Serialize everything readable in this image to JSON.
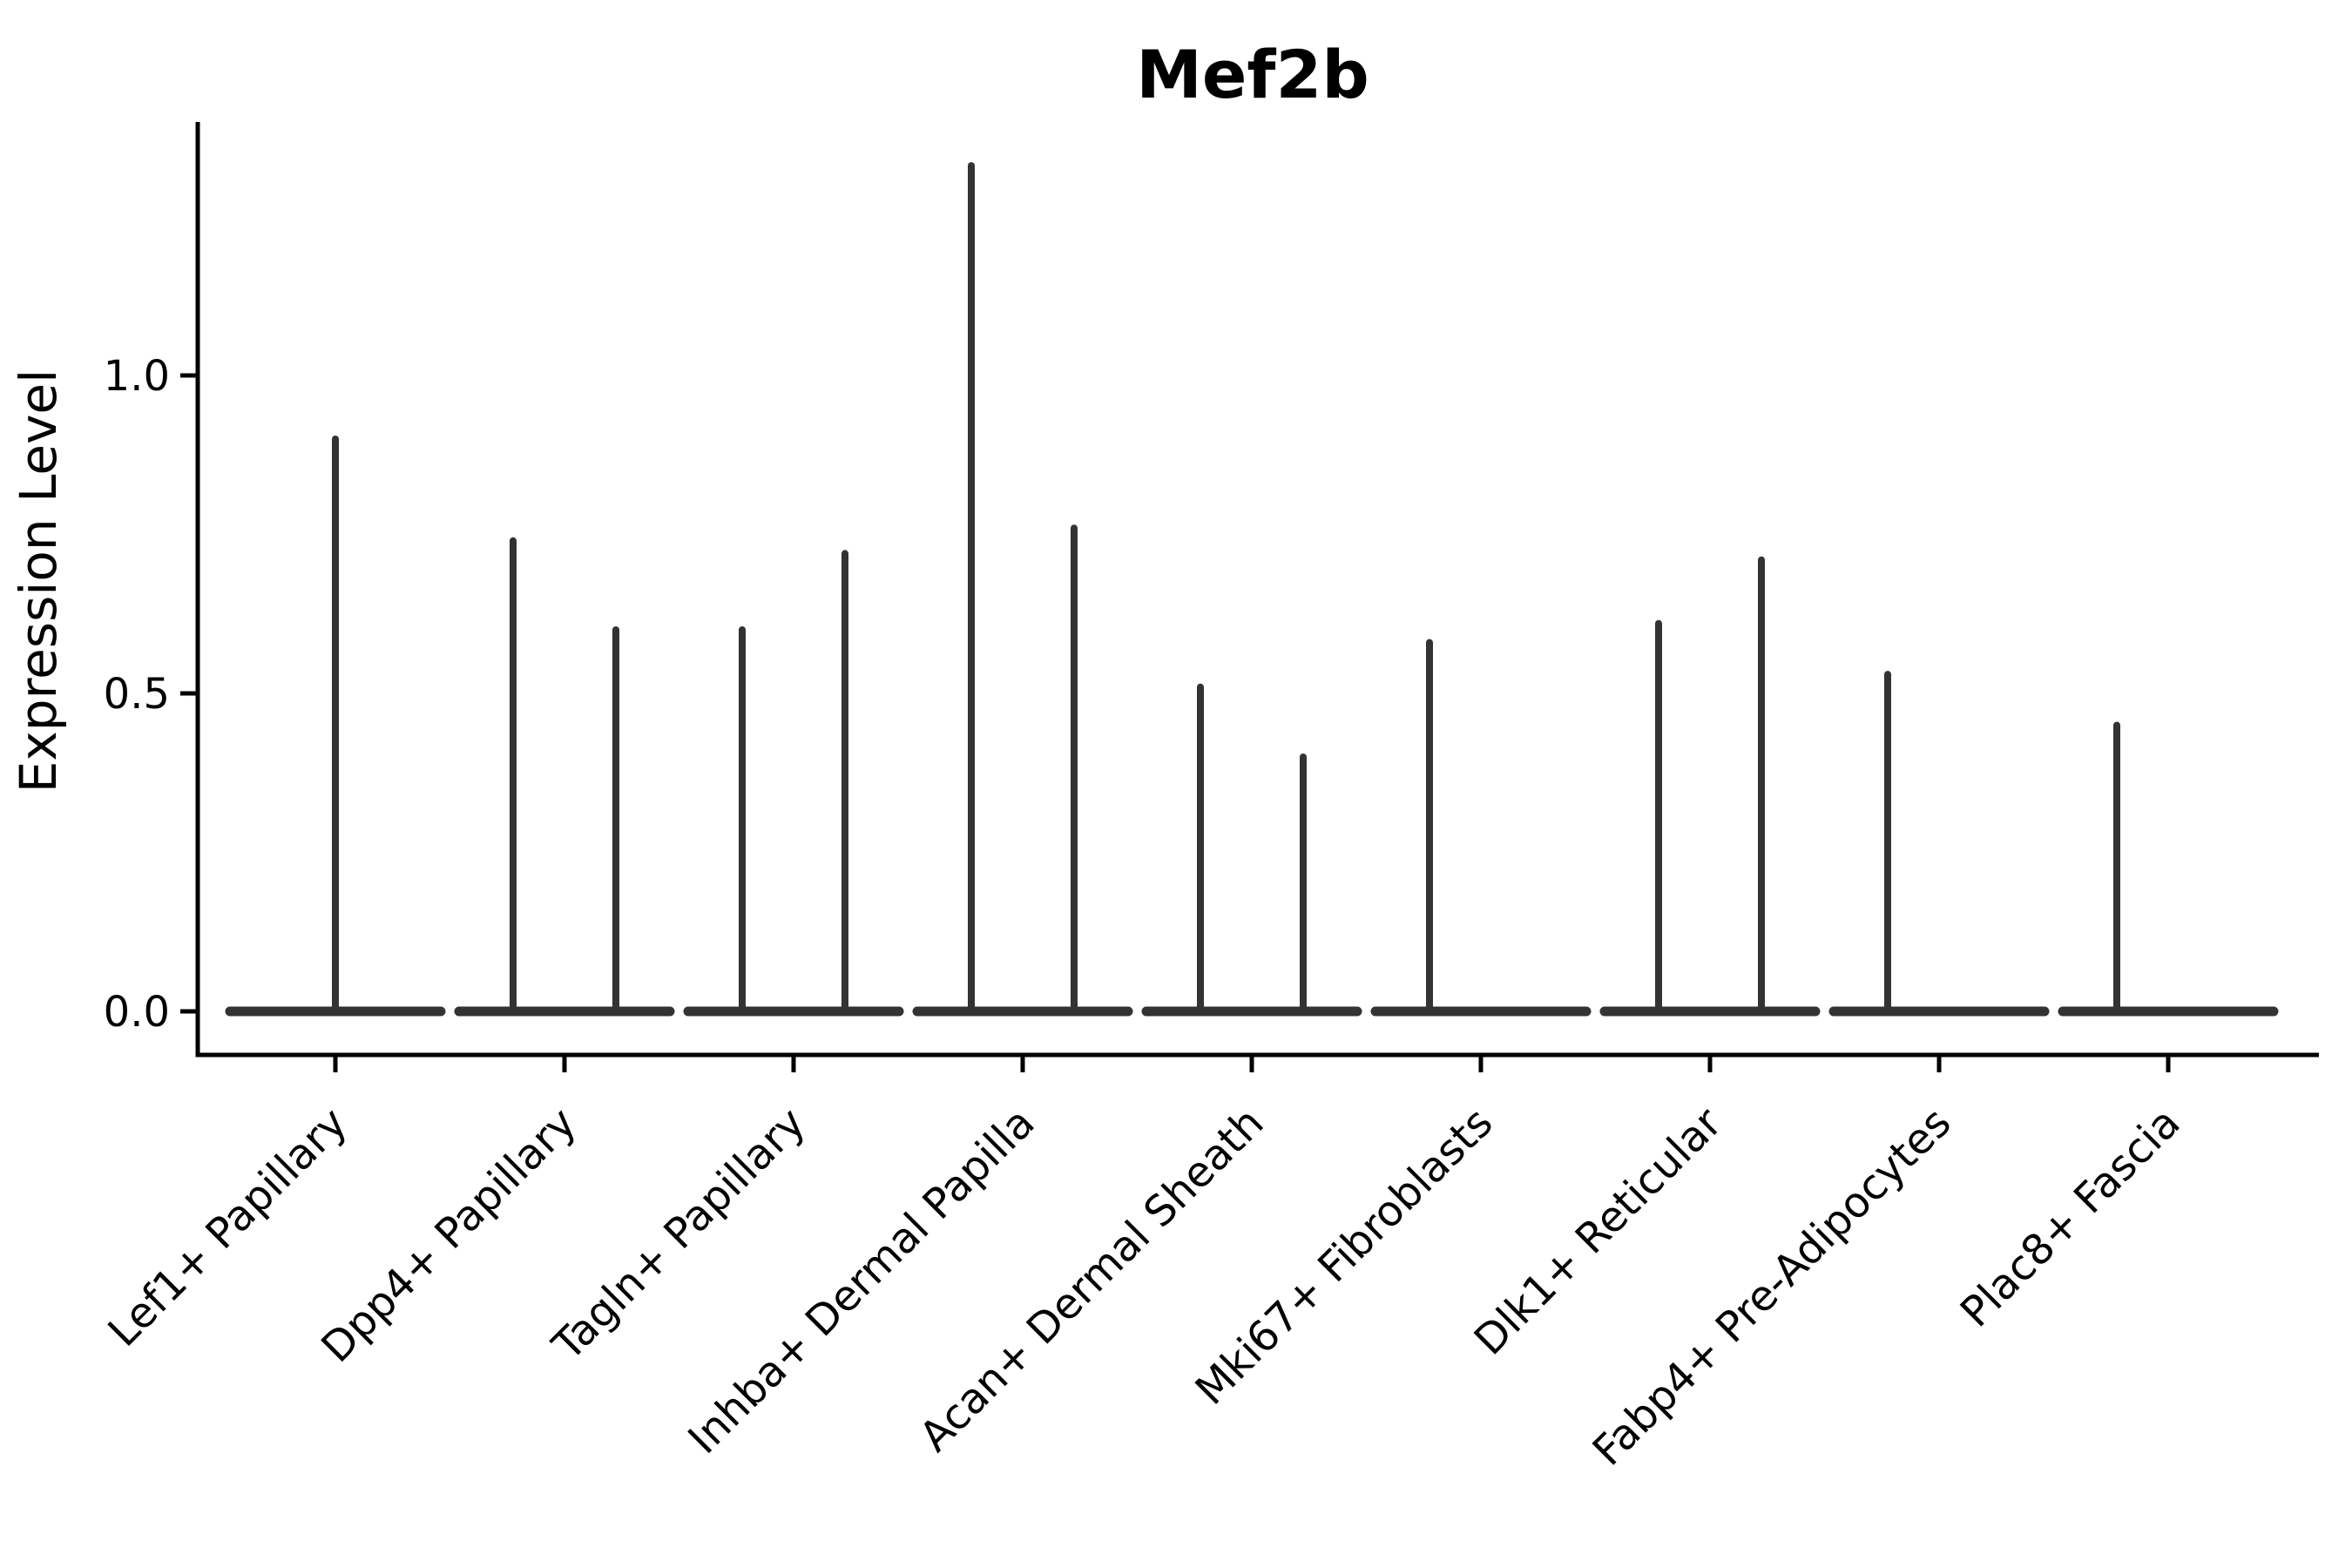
{
  "title": "Mef2b",
  "chart_data": {
    "type": "violin",
    "title": "Mef2b",
    "xlabel": "",
    "ylabel": "Expression Level",
    "yticks": [
      "0.0",
      "0.5",
      "1.0"
    ],
    "ytick_values": [
      0.0,
      0.5,
      1.0
    ],
    "ylim": [
      -0.07,
      1.4
    ],
    "grid": false,
    "legend": "none",
    "background_color": "#ffffff",
    "violin_color": "#333333",
    "axis_color": "#000000",
    "text_color": "#000000",
    "categories": [
      "Lef1+ Papillary",
      "Dpp4+ Papillary",
      "Tagln+ Papillary",
      "Inhba+ Dermal Papilla",
      "Acan+ Dermal Sheath",
      "Mki67+ Fibroblasts",
      "Dlk1+ Reticular",
      "Fabp4+ Pre-Adipocytes",
      "Plac8+ Fascia"
    ],
    "violins": [
      {
        "category": "Lef1+ Papillary",
        "baseline": 0.0,
        "spikes": [
          {
            "slot": "center",
            "max": 0.9
          }
        ]
      },
      {
        "category": "Dpp4+ Papillary",
        "baseline": 0.0,
        "spikes": [
          {
            "slot": "left",
            "max": 0.74
          },
          {
            "slot": "right",
            "max": 0.6
          }
        ]
      },
      {
        "category": "Tagln+ Papillary",
        "baseline": 0.0,
        "spikes": [
          {
            "slot": "left",
            "max": 0.6
          },
          {
            "slot": "right",
            "max": 0.72
          }
        ]
      },
      {
        "category": "Inhba+ Dermal Papilla",
        "baseline": 0.0,
        "spikes": [
          {
            "slot": "left",
            "max": 1.33
          },
          {
            "slot": "right",
            "max": 0.76
          }
        ]
      },
      {
        "category": "Acan+ Dermal Sheath",
        "baseline": 0.0,
        "spikes": [
          {
            "slot": "left",
            "max": 0.51
          },
          {
            "slot": "right",
            "max": 0.4
          }
        ]
      },
      {
        "category": "Mki67+ Fibroblasts",
        "baseline": 0.0,
        "spikes": [
          {
            "slot": "left",
            "max": 0.58
          }
        ]
      },
      {
        "category": "Dlk1+ Reticular",
        "baseline": 0.0,
        "spikes": [
          {
            "slot": "left",
            "max": 0.61
          },
          {
            "slot": "right",
            "max": 0.71
          }
        ]
      },
      {
        "category": "Fabp4+ Pre-Adipocytes",
        "baseline": 0.0,
        "spikes": [
          {
            "slot": "left",
            "max": 0.53
          }
        ]
      },
      {
        "category": "Plac8+ Fascia",
        "baseline": 0.0,
        "spikes": [
          {
            "slot": "left",
            "max": 0.45
          }
        ]
      }
    ]
  }
}
